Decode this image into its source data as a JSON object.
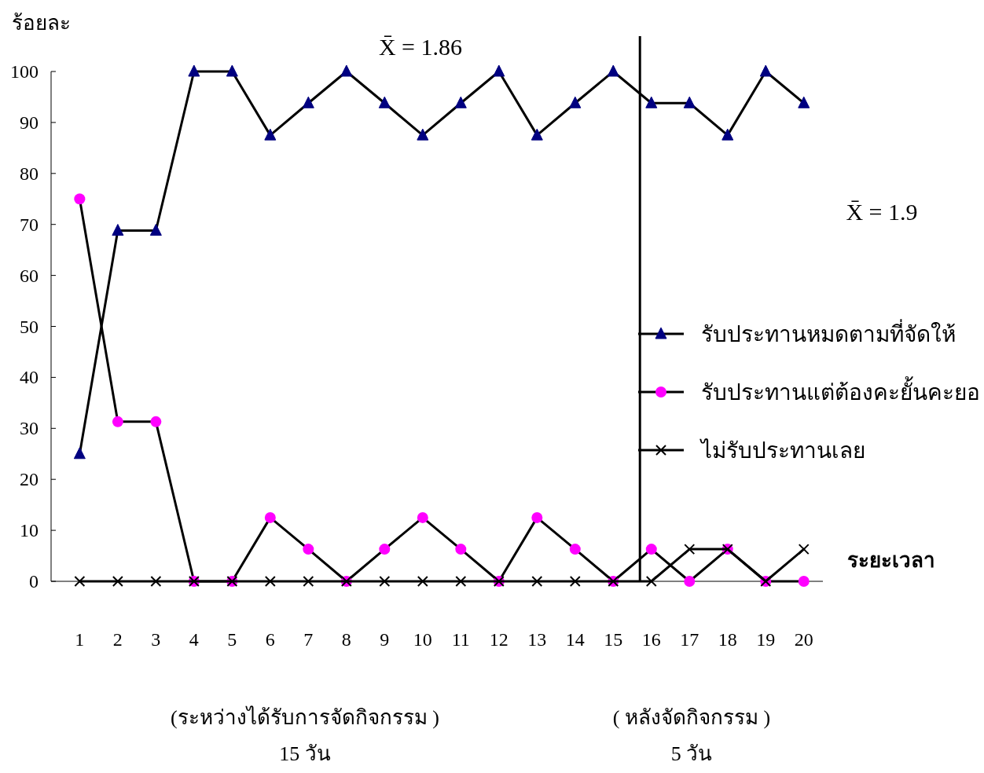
{
  "chart_data": {
    "type": "line",
    "ylabel": "ร้อยละ",
    "xlabel": "ระยะเวลา",
    "x": [
      1,
      2,
      3,
      4,
      5,
      6,
      7,
      8,
      9,
      10,
      11,
      12,
      13,
      14,
      15,
      16,
      17,
      18,
      19,
      20
    ],
    "xlim": [
      0.25,
      20.5
    ],
    "xticks": [
      1,
      2,
      3,
      4,
      5,
      6,
      7,
      8,
      9,
      10,
      11,
      12,
      13,
      14,
      15,
      16,
      17,
      18,
      19,
      20
    ],
    "ylim": [
      0,
      100
    ],
    "yticks": [
      0,
      10,
      20,
      30,
      40,
      50,
      60,
      70,
      80,
      90,
      100
    ],
    "legend": "right",
    "series": [
      {
        "name": "รับประทานหมดตามที่จัดให้",
        "color": "#000080",
        "marker": "triangle",
        "values": [
          25,
          68.8,
          68.8,
          100,
          100,
          87.5,
          93.8,
          100,
          93.8,
          87.5,
          93.8,
          100,
          87.5,
          93.8,
          100,
          93.8,
          93.8,
          87.5,
          100,
          93.8
        ]
      },
      {
        "name": "รับประทานแต่ต้องคะยั้นคะยอ",
        "color": "#ff00ff",
        "marker": "circle",
        "values": [
          75,
          31.3,
          31.3,
          0,
          0,
          12.5,
          6.3,
          0,
          6.3,
          12.5,
          6.3,
          0,
          12.5,
          6.3,
          0,
          6.3,
          0,
          6.3,
          0,
          0
        ]
      },
      {
        "name": "ไม่รับประทานเลย",
        "color": "#000000",
        "marker": "cross",
        "values": [
          0,
          0,
          0,
          0,
          0,
          0,
          0,
          0,
          0,
          0,
          0,
          0,
          0,
          0,
          0,
          0,
          6.3,
          6.3,
          0,
          6.3
        ]
      }
    ],
    "ref_lines": [
      {
        "axis": "x",
        "value": 15.7,
        "color": "#000000"
      }
    ],
    "annotations": [
      "X̄ = 1.86",
      "X̄ = 1.9",
      "(ระหว่างได้รับการจัดกิจกรรม )",
      "( หลังจัดกิจกรรม )",
      "15 วัน",
      "5 วัน"
    ]
  }
}
